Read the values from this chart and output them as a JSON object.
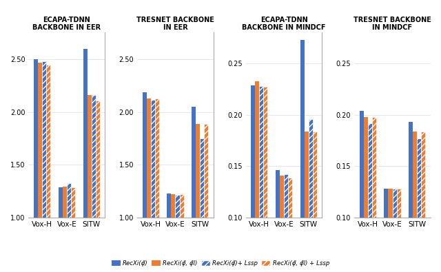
{
  "subplot_titles": [
    "ECAPA-TDNN\nBACKBONE IN EER",
    "TRESNET BACKBONE\nIN EER",
    "ECAPA-TDNN\nBACKBONE IN MINDCF",
    "TRESNET BACKBONE\nIN MINDCF"
  ],
  "groups": [
    "Vox-H",
    "Vox-E",
    "SITW"
  ],
  "legend_labels": [
    "RecXi(φ̃)",
    "RecXi(φ̃, φ̃l)",
    "RecXi(φ̃)+ Lssp",
    "RecXi(φ̃, φ̃l) + Lssp"
  ],
  "colors": [
    "#4472C4",
    "#ED7D31",
    "#4472C4",
    "#ED7D31"
  ],
  "hatches": [
    null,
    null,
    "////",
    "////"
  ],
  "ecapa_eer": {
    "RecXi_phi": [
      2.498,
      1.286,
      2.597
    ],
    "RecXi_phi_phil": [
      2.467,
      1.292,
      2.16
    ],
    "RecXi_phi_lssp": [
      2.477,
      1.326,
      2.16
    ],
    "RecXi_phi_phil_lssp": [
      2.445,
      1.286,
      2.105
    ]
  },
  "tresnet_eer": {
    "RecXi_phi": [
      2.185,
      1.23,
      2.05
    ],
    "RecXi_phi_phil": [
      2.13,
      1.222,
      1.886
    ],
    "RecXi_phi_lssp": [
      2.117,
      1.215,
      1.75
    ],
    "RecXi_phi_phil_lssp": [
      2.13,
      1.222,
      1.886
    ]
  },
  "ecapa_mindcf": {
    "RecXi_phi": [
      0.229,
      0.146,
      0.273
    ],
    "RecXi_phi_phil": [
      0.233,
      0.141,
      0.184
    ],
    "RecXi_phi_lssp": [
      0.228,
      0.142,
      0.196
    ],
    "RecXi_phi_phil_lssp": [
      0.227,
      0.139,
      0.184
    ]
  },
  "tresnet_mindcf": {
    "RecXi_phi": [
      0.204,
      0.128,
      0.193
    ],
    "RecXi_phi_phil": [
      0.198,
      0.128,
      0.184
    ],
    "RecXi_phi_lssp": [
      0.192,
      0.128,
      0.177
    ],
    "RecXi_phi_phil_lssp": [
      0.198,
      0.128,
      0.184
    ]
  },
  "eer_ylim": [
    1.0,
    2.75
  ],
  "eer_yticks": [
    1.0,
    1.5,
    2.0,
    2.5
  ],
  "mindcf_ylim": [
    0.1,
    0.28
  ],
  "mindcf_yticks": [
    0.1,
    0.15,
    0.2,
    0.25
  ],
  "background_color": "#ffffff"
}
